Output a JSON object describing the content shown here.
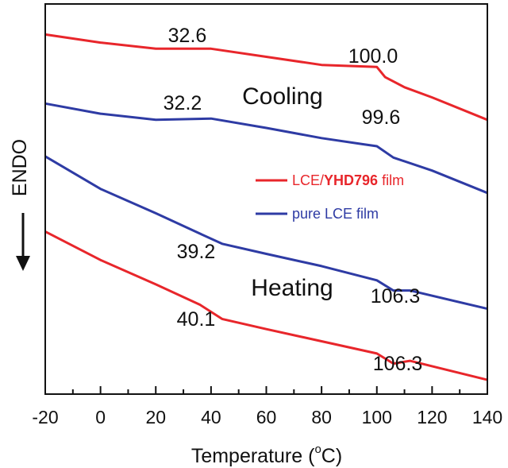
{
  "chart_data": {
    "type": "line",
    "xlabel": "Temperature (",
    "xlabel_degree": "o",
    "xlabel_unit": "C)",
    "ylabel": "ENDO",
    "ylabel_arrow": "down",
    "xlim": [
      -20,
      140
    ],
    "x_ticks": [
      "-20",
      "0",
      "20",
      "40",
      "60",
      "80",
      "100",
      "120",
      "140"
    ],
    "y_ticks_shown": false,
    "grid": false,
    "legend_placement": "right-middle",
    "legend": [
      {
        "prefix": "LCE/",
        "bold": "YHD796",
        "suffix": " film",
        "color": "#e8262b"
      },
      {
        "text": "pure LCE film",
        "color": "#2e3ba4"
      }
    ],
    "colors": {
      "lce_yhd796": "#e8262b",
      "pure_lce": "#2e3ba4"
    },
    "y_units": "arbitrary (heat flow, offset curves)",
    "series": [
      {
        "name": "LCE/YHD796 film",
        "segment": "Cooling",
        "color": "#e8262b",
        "points": [
          [
            -20,
            8.85
          ],
          [
            0,
            8.65
          ],
          [
            20,
            8.5
          ],
          [
            40,
            8.5
          ],
          [
            60,
            8.3
          ],
          [
            80,
            8.1
          ],
          [
            100,
            8.05
          ],
          [
            103,
            7.8
          ],
          [
            110,
            7.55
          ],
          [
            120,
            7.3
          ],
          [
            140,
            6.75
          ]
        ]
      },
      {
        "name": "pure LCE film",
        "segment": "Cooling",
        "color": "#2e3ba4",
        "points": [
          [
            -20,
            7.15
          ],
          [
            0,
            6.9
          ],
          [
            20,
            6.75
          ],
          [
            40,
            6.78
          ],
          [
            60,
            6.55
          ],
          [
            80,
            6.3
          ],
          [
            95,
            6.15
          ],
          [
            100,
            6.1
          ],
          [
            106,
            5.82
          ],
          [
            120,
            5.5
          ],
          [
            140,
            4.95
          ]
        ]
      },
      {
        "name": "pure LCE film",
        "segment": "Heating",
        "color": "#2e3ba4",
        "points": [
          [
            -20,
            5.85
          ],
          [
            0,
            5.05
          ],
          [
            20,
            4.45
          ],
          [
            36,
            3.95
          ],
          [
            44,
            3.7
          ],
          [
            60,
            3.45
          ],
          [
            80,
            3.15
          ],
          [
            100,
            2.8
          ],
          [
            106,
            2.55
          ],
          [
            112,
            2.55
          ],
          [
            140,
            2.1
          ]
        ]
      },
      {
        "name": "LCE/YHD796 film",
        "segment": "Heating",
        "color": "#e8262b",
        "points": [
          [
            -20,
            4.0
          ],
          [
            0,
            3.3
          ],
          [
            20,
            2.7
          ],
          [
            36,
            2.2
          ],
          [
            44,
            1.85
          ],
          [
            60,
            1.6
          ],
          [
            80,
            1.3
          ],
          [
            100,
            1.0
          ],
          [
            106,
            0.75
          ],
          [
            112,
            0.82
          ],
          [
            140,
            0.35
          ]
        ]
      }
    ],
    "annotations": [
      {
        "text": "32.6",
        "segment": "Cooling",
        "series": "LCE/YHD796 film"
      },
      {
        "text": "100.0",
        "segment": "Cooling",
        "series": "LCE/YHD796 film"
      },
      {
        "text": "32.2",
        "segment": "Cooling",
        "series": "pure LCE film"
      },
      {
        "text": "99.6",
        "segment": "Cooling",
        "series": "pure LCE film"
      },
      {
        "text": "39.2",
        "segment": "Heating",
        "series": "pure LCE film"
      },
      {
        "text": "106.3",
        "segment": "Heating",
        "series": "pure LCE film"
      },
      {
        "text": "40.1",
        "segment": "Heating",
        "series": "LCE/YHD796 film"
      },
      {
        "text": "106.3",
        "segment": "Heating",
        "series": "LCE/YHD796 film"
      }
    ],
    "section_labels": [
      "Cooling",
      "Heating"
    ]
  }
}
